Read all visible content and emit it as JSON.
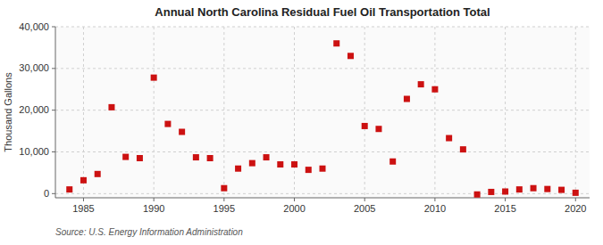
{
  "chart_data": {
    "type": "scatter",
    "title": "Annual North Carolina Residual Fuel Oil Transportation Total",
    "ylabel": "Thousand Gallons",
    "source": "Source: U.S. Energy Information Administration",
    "color": "#cc1111",
    "marker": "square",
    "x": [
      1984,
      1985,
      1986,
      1987,
      1988,
      1989,
      1990,
      1991,
      1992,
      1993,
      1994,
      1995,
      1996,
      1997,
      1998,
      1999,
      2000,
      2001,
      2002,
      2003,
      2004,
      2005,
      2006,
      2007,
      2008,
      2009,
      2010,
      2011,
      2012,
      2013,
      2014,
      2015,
      2016,
      2017,
      2018,
      2019,
      2020
    ],
    "values": [
      1000,
      3200,
      4700,
      20700,
      8800,
      8500,
      27800,
      16700,
      14800,
      8700,
      8500,
      1300,
      6000,
      7300,
      8700,
      7000,
      7000,
      5700,
      6000,
      36000,
      33000,
      16200,
      15500,
      7700,
      22700,
      26200,
      25000,
      13300,
      10600,
      -200,
      400,
      500,
      1000,
      1300,
      1100,
      900,
      200
    ],
    "xlim": [
      1983,
      2021
    ],
    "ylim": [
      -1000,
      40000
    ],
    "xticks": [
      1985,
      1990,
      1995,
      2000,
      2005,
      2010,
      2015,
      2020
    ],
    "yticks": [
      0,
      {
        "value": 10000,
        "label": "10,000"
      },
      {
        "value": 20000,
        "label": "20,000"
      },
      {
        "value": 30000,
        "label": "30,000"
      },
      {
        "value": 40000,
        "label": "40,000"
      }
    ],
    "grid": true
  }
}
